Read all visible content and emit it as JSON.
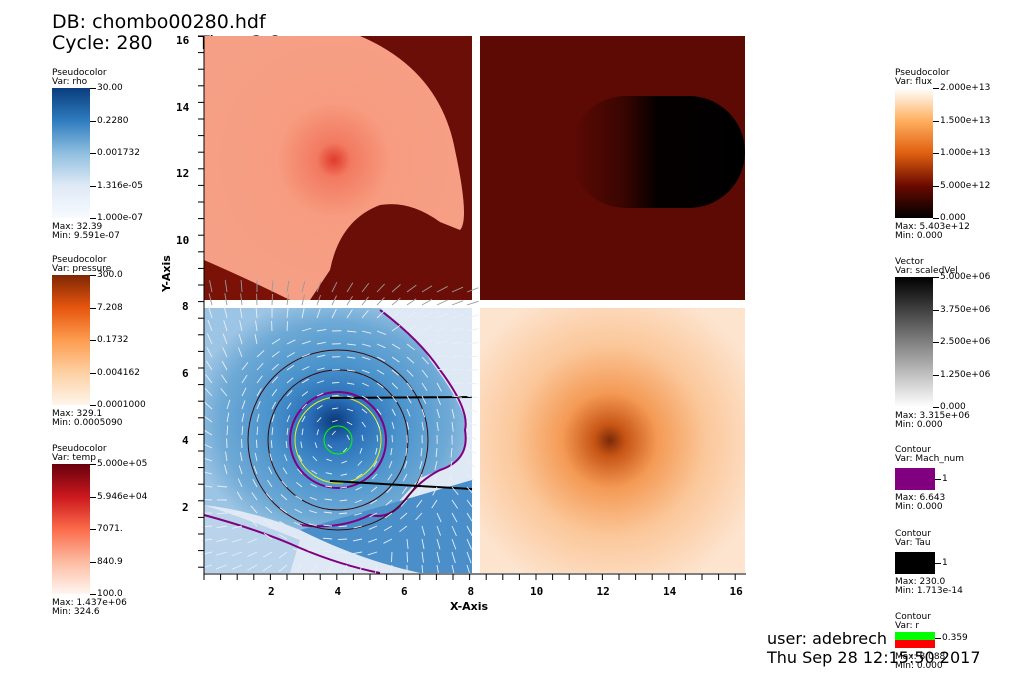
{
  "header": {
    "db": "DB: chombo00280.hdf",
    "cycle": "Cycle: 280",
    "time": "Time:2.8"
  },
  "legends_left": [
    {
      "title": "Pseudocolor",
      "var": "Var: rho",
      "ticks": [
        "30.00",
        "0.2280",
        "0.001732",
        "1.316e-05",
        "1.000e-07"
      ],
      "max": "Max:  32.39",
      "min": "Min:  9.591e-07",
      "colors": [
        "#0a3d7d",
        "#2e7cbf",
        "#8fbfe0",
        "#dfe9f5",
        "#f7fbff"
      ]
    },
    {
      "title": "Pseudocolor",
      "var": "Var: pressure",
      "ticks": [
        "300.0",
        "7.208",
        "0.1732",
        "0.004162",
        "0.0001000"
      ],
      "max": "Max:  329.1",
      "min": "Min:  0.0005090",
      "colors": [
        "#7f2704",
        "#e6550d",
        "#fd9c4f",
        "#fdd0a2",
        "#fff5eb"
      ]
    },
    {
      "title": "Pseudocolor",
      "var": "Var: temp",
      "ticks": [
        "5.000e+05",
        "5.946e+04",
        "7071.",
        "840.9",
        "100.0"
      ],
      "max": "Max:  1.437e+06",
      "min": "Min:  324.6",
      "colors": [
        "#67000d",
        "#cb181d",
        "#fb6a4a",
        "#fcbba1",
        "#fff5f0"
      ]
    }
  ],
  "legends_right": [
    {
      "title": "Pseudocolor",
      "var": "Var: flux",
      "ticks": [
        "2.000e+13",
        "1.500e+13",
        "1.000e+13",
        "5.000e+12",
        "0.000"
      ],
      "max": "Max:  5.403e+12",
      "min": "Min:  0.000",
      "colors": [
        "#ffffff",
        "#ffb060",
        "#e06010",
        "#6b0a00",
        "#000000"
      ]
    },
    {
      "title": "Vector",
      "var": "Var: scaledVel",
      "ticks": [
        "5.000e+06",
        "3.750e+06",
        "2.500e+06",
        "1.250e+06",
        "0.000"
      ],
      "max": "Max:  3.315e+06",
      "min": "Min:  0.000",
      "colors": [
        "#000000",
        "#404040",
        "#808080",
        "#c0c0c0",
        "#ffffff"
      ]
    }
  ],
  "contours": [
    {
      "title": "Contour",
      "var": "Var: Mach_num",
      "tick": "1",
      "max": "Max:  6.643",
      "min": "Min:  0.000",
      "color": "#800080"
    },
    {
      "title": "Contour",
      "var": "Var: Tau",
      "tick": "1",
      "max": "Max:  230.0",
      "min": "Min:  1.713e-14",
      "color": "#000000"
    },
    {
      "title": "Contour",
      "var": "Var: r",
      "tick": "0.359",
      "max": "Max:  8.088",
      "min": "Min:  0.000",
      "color": "#00ff00",
      "color2": "#ff0000"
    }
  ],
  "axes": {
    "xlabel": "X-Axis",
    "ylabel": "Y-Axis",
    "xticks": [
      "2",
      "4",
      "6",
      "8",
      "10",
      "12",
      "14",
      "16"
    ],
    "yticks_lower": [
      "2",
      "4",
      "6",
      "8"
    ],
    "yticks_upper": [
      "10",
      "12",
      "14",
      "16"
    ]
  },
  "footer": {
    "user": "user: adebrech",
    "date": "Thu Sep 28 12:15:50 2017"
  }
}
